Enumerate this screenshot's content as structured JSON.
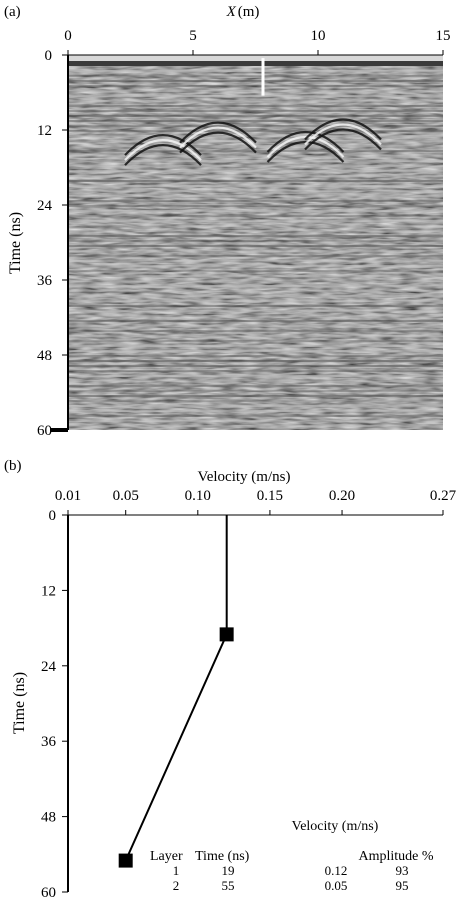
{
  "chart_data": [
    {
      "type": "heatmap",
      "panel_label": "(a)",
      "xlabel": "X (m)",
      "xlabel_var": "X",
      "xlabel_unit": "(m)",
      "ylabel": "Time (ns)",
      "xlim": [
        0,
        15
      ],
      "ylim": [
        0,
        60
      ],
      "x_ticks": [
        "0",
        "5",
        "10",
        "15"
      ],
      "x_tick_values": [
        0,
        5,
        10,
        15
      ],
      "y_ticks": [
        "0",
        "12",
        "24",
        "36",
        "48",
        "60"
      ],
      "y_tick_values": [
        0,
        12,
        24,
        36,
        48,
        60
      ],
      "colormap": "grayscale",
      "marker_line_x": 7.8,
      "marker_line_t": [
        0.5,
        6.5
      ],
      "diffraction_events": [
        {
          "x": 3.8,
          "t": 12.5
        },
        {
          "x": 6.0,
          "t": 10.5
        },
        {
          "x": 9.5,
          "t": 12.0
        },
        {
          "x": 11.0,
          "t": 10.0
        }
      ]
    },
    {
      "type": "line",
      "panel_label": "(b)",
      "xlabel": "Velocity (m/ns)",
      "ylabel": "Time (ns)",
      "xlim": [
        0.01,
        0.27
      ],
      "ylim": [
        0,
        60
      ],
      "y_inverted": true,
      "x_ticks": [
        "0.01",
        "0.05",
        "0.10",
        "0.15",
        "0.20",
        "0.27"
      ],
      "x_tick_values": [
        0.01,
        0.05,
        0.1,
        0.15,
        0.2,
        0.27
      ],
      "y_ticks": [
        "0",
        "12",
        "24",
        "36",
        "48",
        "60"
      ],
      "y_tick_values": [
        0,
        12,
        24,
        36,
        48,
        60
      ],
      "grid": false,
      "series": [
        {
          "points": [
            {
              "v": 0.12,
              "t": 0
            },
            {
              "v": 0.12,
              "t": 19
            },
            {
              "v": 0.05,
              "t": 55
            }
          ],
          "markers": [
            {
              "v": 0.12,
              "t": 19
            },
            {
              "v": 0.05,
              "t": 55
            }
          ]
        }
      ],
      "table": {
        "headers": [
          "Layer",
          "Time (ns)",
          "Velocity (m/ns)",
          "Amplitude %"
        ],
        "rows": [
          [
            "1",
            "19",
            "0.12",
            "93"
          ],
          [
            "2",
            "55",
            "0.05",
            "95"
          ]
        ]
      }
    }
  ]
}
